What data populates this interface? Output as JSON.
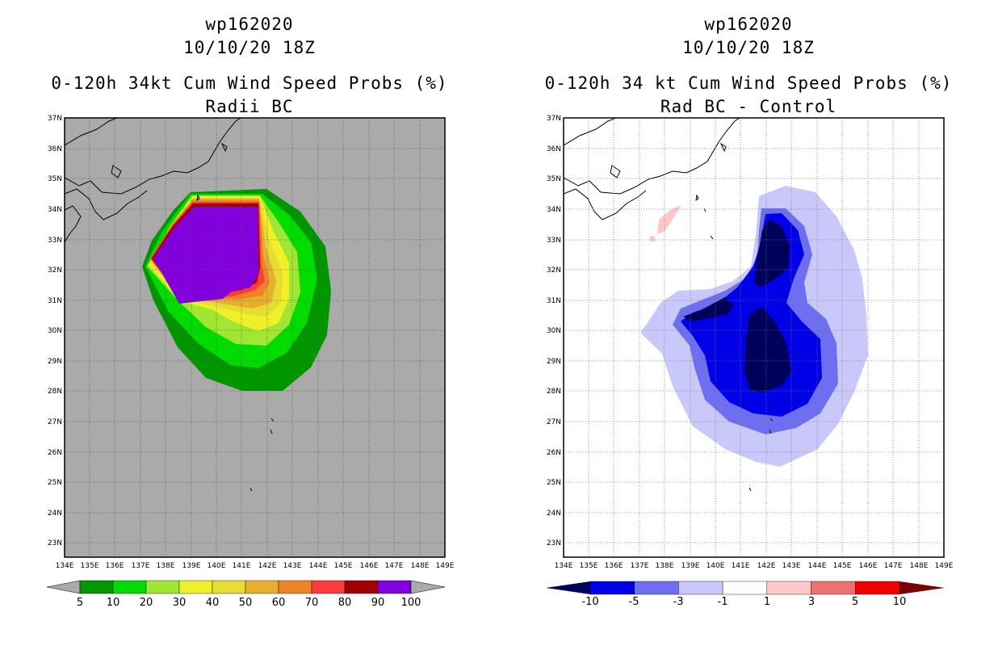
{
  "left_panel": {
    "storm": "wp162020",
    "datetime": "10/10/20 18Z",
    "title": "0-120h 34kt Cum Wind Speed Probs (%)",
    "subtitle": "Radii BC",
    "colorbar": {
      "labels": [
        "5",
        "10",
        "20",
        "30",
        "40",
        "50",
        "60",
        "70",
        "80",
        "90",
        "100"
      ],
      "colors": [
        "#009600",
        "#00dc00",
        "#a0e632",
        "#f0f028",
        "#e6dc32",
        "#e6af2d",
        "#f08228",
        "#fa3c3c",
        "#a00000",
        "#8200dc"
      ]
    }
  },
  "right_panel": {
    "storm": "wp162020",
    "datetime": "10/10/20 18Z",
    "title": "0-120h 34 kt Cum Wind Speed Probs (%)",
    "subtitle": "Rad BC - Control",
    "colorbar": {
      "labels": [
        "-10",
        "-5",
        "-3",
        "-1",
        "1",
        "3",
        "5",
        "10"
      ],
      "colors": [
        "#00005a",
        "#0000e6",
        "#6e6ef0",
        "#c8c8fa",
        "#ffffff",
        "#ffc8c8",
        "#f07070",
        "#f00000",
        "#780000"
      ]
    }
  },
  "axes": {
    "lon_ticks": [
      "134E",
      "135E",
      "136E",
      "137E",
      "138E",
      "139E",
      "140E",
      "141E",
      "142E",
      "143E",
      "144E",
      "145E",
      "146E",
      "147E",
      "148E",
      "149E"
    ],
    "lat_ticks": [
      "23N",
      "24N",
      "25N",
      "26N",
      "27N",
      "28N",
      "29N",
      "30N",
      "31N",
      "32N",
      "33N",
      "34N",
      "35N",
      "36N",
      "37N"
    ]
  },
  "colors": {
    "background_gray": "#aaaaaa"
  }
}
